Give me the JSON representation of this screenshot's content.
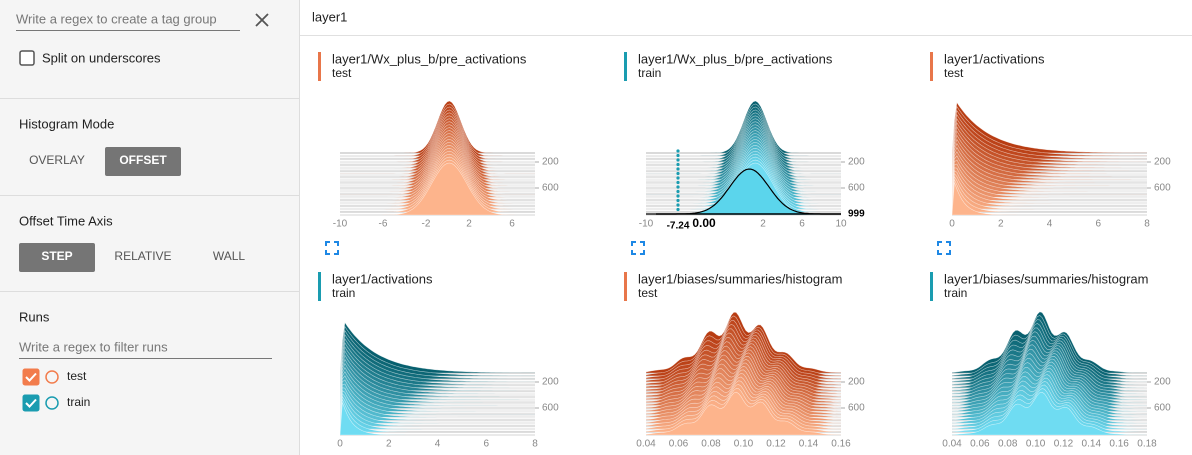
{
  "sidebar": {
    "tag_filter_placeholder": "Write a regex to create a tag group",
    "split_on_underscores": "Split on underscores",
    "histogram_mode": {
      "title": "Histogram Mode",
      "options": [
        "OVERLAY",
        "OFFSET"
      ],
      "selected": "OFFSET"
    },
    "offset_time_axis": {
      "title": "Offset Time Axis",
      "options": [
        "STEP",
        "RELATIVE",
        "WALL"
      ],
      "selected": "STEP"
    },
    "runs": {
      "title": "Runs",
      "filter_placeholder": "Write a regex to filter runs",
      "items": [
        {
          "name": "test",
          "color": "#f27c4c",
          "checked": true
        },
        {
          "name": "train",
          "color": "#1a9cb0",
          "checked": true
        }
      ]
    }
  },
  "main": {
    "search": "layer1",
    "cards": [
      {
        "tag": "layer1/Wx_plus_b/pre_activations",
        "run": "test",
        "color": "#e8764a",
        "xticks": [
          "-10",
          "-6",
          "-2",
          "2",
          "6"
        ],
        "yticks": [
          "200",
          "600"
        ]
      },
      {
        "tag": "layer1/Wx_plus_b/pre_activations",
        "run": "train",
        "color": "#1a9cb0",
        "xticks": [
          "-10",
          "2",
          "6",
          "10"
        ],
        "yticks": [
          "200",
          "600"
        ],
        "hover": {
          "x_label": "-7.24",
          "value_label": "0.00",
          "step_label": "999"
        }
      },
      {
        "tag": "layer1/activations",
        "run": "test",
        "color": "#e8764a",
        "xticks": [
          "0",
          "2",
          "4",
          "6",
          "8"
        ],
        "yticks": [
          "200",
          "600"
        ]
      },
      {
        "tag": "layer1/activations",
        "run": "train",
        "color": "#1a9cb0",
        "xticks": [
          "0",
          "2",
          "4",
          "6",
          "8"
        ],
        "yticks": [
          "200",
          "600"
        ]
      },
      {
        "tag": "layer1/biases/summaries/histogram",
        "run": "test",
        "color": "#e8764a",
        "xticks": [
          "0.04",
          "0.06",
          "0.08",
          "0.10",
          "0.12",
          "0.14",
          "0.16"
        ],
        "yticks": [
          "200",
          "600"
        ]
      },
      {
        "tag": "layer1/biases/summaries/histogram",
        "run": "train",
        "color": "#1a9cb0",
        "xticks": [
          "0.04",
          "0.06",
          "0.08",
          "0.10",
          "0.12",
          "0.14",
          "0.16",
          "0.18"
        ],
        "yticks": [
          "200",
          "600"
        ]
      }
    ]
  }
}
